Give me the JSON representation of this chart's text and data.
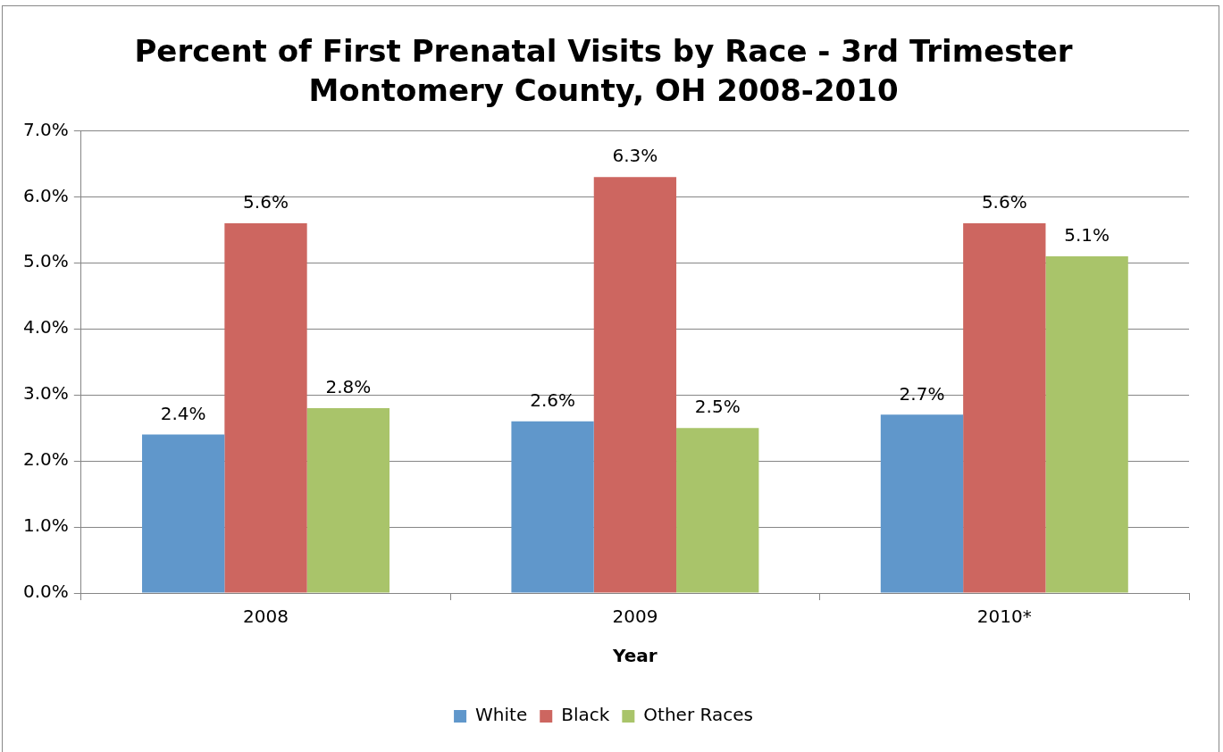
{
  "chart_data": {
    "type": "bar",
    "title": "Percent of First Prenatal Visits by Race - 3rd Trimester\nMontomery County, OH 2008-2010",
    "xlabel": "Year",
    "categories": [
      "2008",
      "2009",
      "2010*"
    ],
    "series": [
      {
        "name": "White",
        "color": "#6097cb",
        "values": [
          2.4,
          2.6,
          2.7
        ],
        "value_labels": [
          "2.4%",
          "2.6%",
          "2.7%"
        ]
      },
      {
        "name": "Black",
        "color": "#cd6660",
        "values": [
          5.6,
          6.3,
          5.6
        ],
        "value_labels": [
          "5.6%",
          "6.3%",
          "5.6%"
        ]
      },
      {
        "name": "Other Races",
        "color": "#a9c46a",
        "values": [
          2.8,
          2.5,
          5.1
        ],
        "value_labels": [
          "2.8%",
          "2.5%",
          "5.1%"
        ]
      }
    ],
    "ylim": [
      0,
      7
    ],
    "yticks": [
      {
        "value": 0,
        "label": "0.0%"
      },
      {
        "value": 1,
        "label": "1.0%"
      },
      {
        "value": 2,
        "label": "2.0%"
      },
      {
        "value": 3,
        "label": "3.0%"
      },
      {
        "value": 4,
        "label": "4.0%"
      },
      {
        "value": 5,
        "label": "5.0%"
      },
      {
        "value": 6,
        "label": "6.0%"
      },
      {
        "value": 7,
        "label": "7.0%"
      }
    ],
    "grid": "y",
    "legend": "bottom"
  }
}
